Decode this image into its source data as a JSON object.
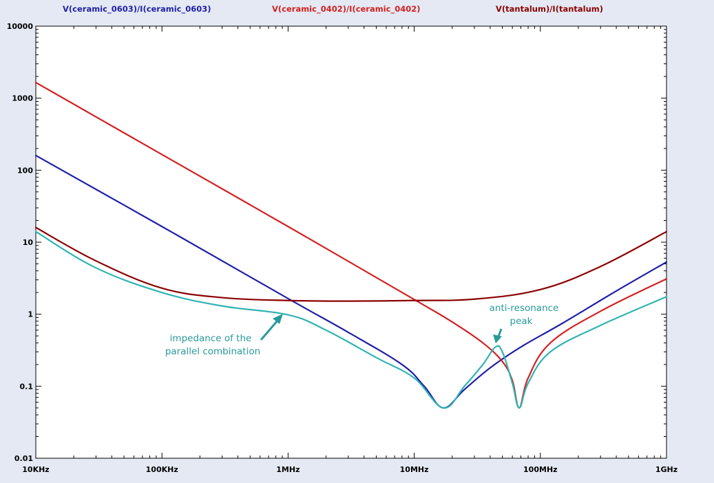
{
  "colors": {
    "background": "#e4e9f3",
    "plot_area": "#ffffff",
    "axis": "#000000",
    "ceramic_0603": "#1f1fa8",
    "ceramic_0402": "#d42020",
    "tantalum": "#8b0000",
    "parallel": "#2fb3b3",
    "annotation": "#2a9a9a"
  },
  "legend": [
    {
      "label": "V(ceramic_0603)/I(ceramic_0603)",
      "color": "#1f1fa8"
    },
    {
      "label": "V(ceramic_0402)/I(ceramic_0402)",
      "color": "#d42020"
    },
    {
      "label": "V(tantalum)/I(tantalum)",
      "color": "#8b0000"
    }
  ],
  "annotations": {
    "parallel": [
      "impedance of the",
      "parallel combination"
    ],
    "peak": [
      "anti-resonance",
      "peak"
    ]
  },
  "chart_data": {
    "type": "line",
    "title": "",
    "xlabel": "",
    "ylabel": "",
    "x_scale": "log",
    "y_scale": "log",
    "xlim": [
      10000,
      1000000000
    ],
    "ylim": [
      0.01,
      10000
    ],
    "grid": false,
    "legend_position": "top",
    "x_ticks": [
      {
        "value": 10000,
        "label": "10KHz"
      },
      {
        "value": 100000,
        "label": "100KHz"
      },
      {
        "value": 1000000,
        "label": "1MHz"
      },
      {
        "value": 10000000,
        "label": "10MHz"
      },
      {
        "value": 100000000,
        "label": "100MHz"
      },
      {
        "value": 1000000000,
        "label": "1GHz"
      }
    ],
    "y_ticks": [
      {
        "value": 10000,
        "label": "10000"
      },
      {
        "value": 1000,
        "label": "1000"
      },
      {
        "value": 100,
        "label": "100"
      },
      {
        "value": 10,
        "label": "10"
      },
      {
        "value": 1,
        "label": "1"
      },
      {
        "value": 0.1,
        "label": "0.1"
      },
      {
        "value": 0.01,
        "label": "0.01"
      }
    ],
    "series": [
      {
        "name": "V(ceramic_0603)/I(ceramic_0603)",
        "color": "#1f1fa8",
        "x": [
          10000,
          100000,
          1000000,
          3000000,
          8000000,
          12000000,
          17000000,
          25000000,
          40000000,
          70000000,
          150000000,
          400000000,
          1000000000
        ],
        "y": [
          160,
          16.5,
          1.65,
          0.56,
          0.2,
          0.1,
          0.05,
          0.09,
          0.18,
          0.35,
          0.75,
          2.1,
          5.3
        ]
      },
      {
        "name": "V(ceramic_0402)/I(ceramic_0402)",
        "color": "#d42020",
        "x": [
          10000,
          100000,
          1000000,
          10000000,
          20000000,
          35000000,
          50000000,
          60000000,
          68000000,
          80000000,
          120000000,
          300000000,
          1000000000
        ],
        "y": [
          1650,
          165,
          16.5,
          1.6,
          0.78,
          0.4,
          0.22,
          0.12,
          0.05,
          0.13,
          0.4,
          1.1,
          3.1
        ]
      },
      {
        "name": "V(tantalum)/I(tantalum)",
        "color": "#8b0000",
        "x": [
          10000,
          30000,
          100000,
          300000,
          1000000,
          3000000,
          10000000,
          30000000,
          100000000,
          300000000,
          1000000000
        ],
        "y": [
          16,
          5.5,
          2.3,
          1.7,
          1.55,
          1.52,
          1.55,
          1.62,
          2.2,
          4.6,
          14
        ]
      },
      {
        "name": "",
        "color": "#2fb3b3",
        "x": [
          10000,
          30000,
          100000,
          300000,
          1000000,
          2000000,
          5000000,
          10000000,
          17000000,
          25000000,
          35000000,
          44000000,
          50000000,
          60000000,
          68000000,
          80000000,
          120000000,
          300000000,
          1000000000
        ],
        "y": [
          14,
          4.4,
          2,
          1.3,
          0.98,
          0.6,
          0.25,
          0.13,
          0.05,
          0.1,
          0.2,
          0.35,
          0.3,
          0.11,
          0.05,
          0.11,
          0.3,
          0.7,
          1.75
        ]
      }
    ]
  }
}
